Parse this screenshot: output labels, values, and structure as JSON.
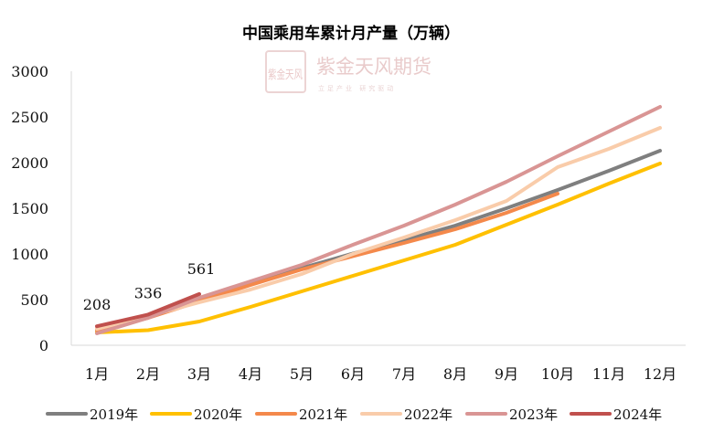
{
  "chart_data": {
    "type": "line",
    "title": "中国乘用车累计月产量（万辆）",
    "xlabel": "",
    "ylabel": "",
    "categories": [
      "1月",
      "2月",
      "3月",
      "4月",
      "5月",
      "6月",
      "7月",
      "8月",
      "9月",
      "10月",
      "11月",
      "12月"
    ],
    "ylim": [
      0,
      3000
    ],
    "yticks": [
      0,
      500,
      1000,
      1500,
      2000,
      2500,
      3000
    ],
    "grid": false,
    "legend_position": "bottom",
    "series": [
      {
        "name": "2019年",
        "color": "#7f7f7f",
        "values": [
          160,
          310,
          505,
          680,
          845,
          1005,
          1150,
          1310,
          1500,
          1700,
          1910,
          2130
        ]
      },
      {
        "name": "2020年",
        "color": "#ffc000",
        "values": [
          140,
          165,
          260,
          420,
          590,
          760,
          930,
          1100,
          1320,
          1540,
          1770,
          1990
        ]
      },
      {
        "name": "2021年",
        "color": "#f4894b",
        "values": [
          165,
          300,
          480,
          660,
          830,
          975,
          1120,
          1270,
          1450,
          1660,
          null,
          null
        ]
      },
      {
        "name": "2022年",
        "color": "#f9ccaa",
        "values": [
          180,
          320,
          470,
          610,
          780,
          1000,
          1180,
          1370,
          1580,
          1950,
          2150,
          2380
        ]
      },
      {
        "name": "2023年",
        "color": "#d99594",
        "values": [
          130,
          300,
          520,
          700,
          880,
          1100,
          1310,
          1540,
          1790,
          2070,
          2340,
          2610
        ]
      },
      {
        "name": "2024年",
        "color": "#c0504d",
        "values": [
          208,
          336,
          561,
          null,
          null,
          null,
          null,
          null,
          null,
          null,
          null,
          null
        ]
      }
    ],
    "data_labels": [
      {
        "series": "2024年",
        "index": 0,
        "text": "208"
      },
      {
        "series": "2024年",
        "index": 1,
        "text": "336"
      },
      {
        "series": "2024年",
        "index": 2,
        "text": "561"
      }
    ]
  },
  "watermark": {
    "logo_text": "紫金天风",
    "name": "紫金天风期货",
    "tagline": "立足产业 研究驱动"
  }
}
